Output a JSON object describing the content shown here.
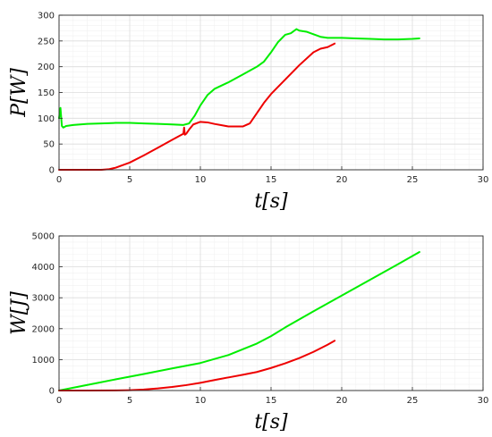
{
  "chart_data": [
    {
      "type": "line",
      "xlabel": "t[s]",
      "ylabel": "P[W]",
      "xlim": [
        0,
        30
      ],
      "ylim": [
        0,
        300
      ],
      "xticks": [
        0,
        5,
        10,
        15,
        20,
        25,
        30
      ],
      "yticks": [
        0,
        50,
        100,
        150,
        200,
        250,
        300
      ],
      "grid": true,
      "series": [
        {
          "color": "#00ee00",
          "x": [
            0,
            0.1,
            0.2,
            0.3,
            0.5,
            1,
            2,
            3,
            4,
            5,
            6,
            7,
            8,
            8.8,
            9.2,
            9.6,
            10,
            10.5,
            11,
            12,
            13,
            14,
            14.5,
            15,
            15.5,
            16,
            16.4,
            16.8,
            17,
            17.5,
            18,
            18.5,
            19,
            20,
            21,
            22,
            23,
            24,
            25,
            25.5
          ],
          "y": [
            100,
            120,
            85,
            82,
            85,
            87,
            89,
            90,
            91,
            91,
            90,
            89,
            88,
            87,
            90,
            105,
            125,
            145,
            157,
            170,
            185,
            200,
            210,
            228,
            248,
            262,
            265,
            273,
            270,
            268,
            263,
            258,
            256,
            256,
            255,
            254,
            253,
            253,
            254,
            255
          ]
        },
        {
          "color": "#ee0000",
          "x": [
            0,
            1,
            2,
            3,
            3.5,
            4,
            5,
            6,
            7,
            8,
            8.8,
            8.85,
            8.9,
            9.0,
            9.2,
            9.5,
            10,
            10.5,
            11,
            12,
            13,
            13.5,
            14,
            14.5,
            15,
            16,
            17,
            18,
            18.5,
            19,
            19.5
          ],
          "y": [
            0,
            0,
            0,
            0,
            1,
            4,
            14,
            28,
            43,
            58,
            70,
            82,
            68,
            70,
            78,
            88,
            93,
            92,
            89,
            84,
            84,
            90,
            110,
            130,
            147,
            175,
            203,
            228,
            235,
            238,
            245
          ]
        }
      ]
    },
    {
      "type": "line",
      "xlabel": "t[s]",
      "ylabel": "W[J]",
      "xlim": [
        0,
        30
      ],
      "ylim": [
        0,
        5000
      ],
      "xticks": [
        0,
        5,
        10,
        15,
        20,
        25,
        30
      ],
      "yticks": [
        0,
        1000,
        2000,
        3000,
        4000,
        5000
      ],
      "grid": true,
      "series": [
        {
          "color": "#00ee00",
          "x": [
            0,
            2,
            4,
            6,
            8,
            10,
            12,
            14,
            15,
            16,
            18,
            20,
            22,
            24,
            25.5
          ],
          "y": [
            0,
            180,
            360,
            535,
            715,
            890,
            1150,
            1520,
            1760,
            2040,
            2560,
            3070,
            3580,
            4090,
            4480
          ]
        },
        {
          "color": "#ee0000",
          "x": [
            0,
            2,
            4,
            5,
            6,
            7,
            8,
            9,
            10,
            11,
            12,
            13,
            14,
            15,
            16,
            17,
            18,
            19,
            19.5
          ],
          "y": [
            0,
            0,
            2,
            12,
            32,
            68,
            115,
            175,
            250,
            340,
            425,
            510,
            600,
            730,
            880,
            1050,
            1250,
            1480,
            1610
          ]
        }
      ]
    }
  ]
}
